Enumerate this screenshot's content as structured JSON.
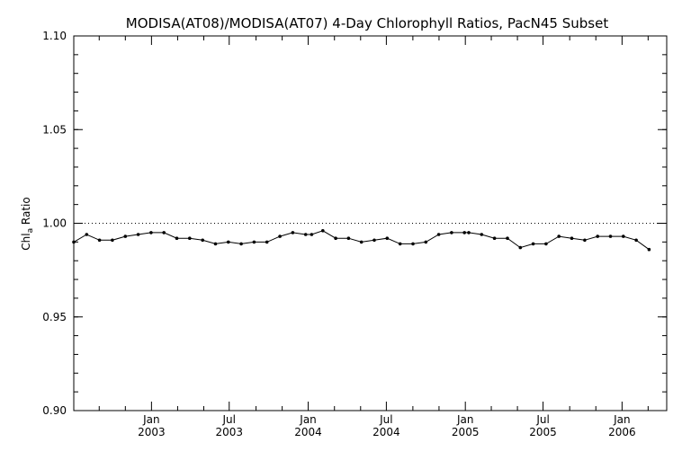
{
  "chart_data": {
    "type": "line",
    "title": "MODISA(AT08)/MODISA(AT07) 4-Day Chlorophyll Ratios, PacN45 Subset",
    "ylabel_main": "Chl",
    "ylabel_sub": "a",
    "ylabel_tail": " Ratio",
    "ylim": [
      0.9,
      1.1
    ],
    "xlim": [
      "2002-07-04",
      "2006-04-15"
    ],
    "y_ticks": [
      0.9,
      0.95,
      1.0,
      1.05,
      1.1
    ],
    "y_tick_labels": [
      "0.90",
      "0.95",
      "1.00",
      "1.05",
      "1.10"
    ],
    "x_ticks": [
      {
        "date": "2003-01-01",
        "line1": "Jan",
        "line2": "2003"
      },
      {
        "date": "2003-07-01",
        "line1": "Jul",
        "line2": "2003"
      },
      {
        "date": "2004-01-01",
        "line1": "Jan",
        "line2": "2004"
      },
      {
        "date": "2004-07-01",
        "line1": "Jul",
        "line2": "2004"
      },
      {
        "date": "2005-01-01",
        "line1": "Jan",
        "line2": "2005"
      },
      {
        "date": "2005-07-01",
        "line1": "Jul",
        "line2": "2005"
      },
      {
        "date": "2006-01-01",
        "line1": "Jan",
        "line2": "2006"
      }
    ],
    "reference_line": 1.0,
    "grid": false,
    "series": [
      {
        "x": [
          "2002-07-04",
          "2002-08-03",
          "2002-09-02",
          "2002-10-02",
          "2002-11-01",
          "2002-12-01",
          "2002-12-31",
          "2003-01-30",
          "2003-03-01",
          "2003-03-31",
          "2003-04-30",
          "2003-05-30",
          "2003-06-29",
          "2003-07-29",
          "2003-08-28",
          "2003-09-27",
          "2003-10-27",
          "2003-11-26",
          "2003-12-26",
          "2004-01-09",
          "2004-02-04",
          "2004-03-05",
          "2004-04-04",
          "2004-05-04",
          "2004-06-03",
          "2004-07-03",
          "2004-08-02",
          "2004-09-01",
          "2004-10-01",
          "2004-10-31",
          "2004-11-30",
          "2004-12-30",
          "2005-01-09",
          "2005-02-08",
          "2005-03-10",
          "2005-04-09",
          "2005-05-09",
          "2005-06-08",
          "2005-07-08",
          "2005-08-07",
          "2005-09-06",
          "2005-10-06",
          "2005-11-05",
          "2005-12-05",
          "2006-01-04",
          "2006-02-03",
          "2006-03-05"
        ],
        "values": [
          0.99,
          0.994,
          0.991,
          0.991,
          0.993,
          0.994,
          0.995,
          0.995,
          0.992,
          0.992,
          0.991,
          0.989,
          0.99,
          0.989,
          0.99,
          0.99,
          0.993,
          0.995,
          0.994,
          0.994,
          0.996,
          0.992,
          0.992,
          0.99,
          0.991,
          0.992,
          0.989,
          0.989,
          0.99,
          0.994,
          0.995,
          0.995,
          0.995,
          0.994,
          0.992,
          0.992,
          0.987,
          0.989,
          0.989,
          0.993,
          0.992,
          0.991,
          0.993,
          0.993,
          0.993,
          0.991,
          0.986
        ]
      }
    ]
  }
}
